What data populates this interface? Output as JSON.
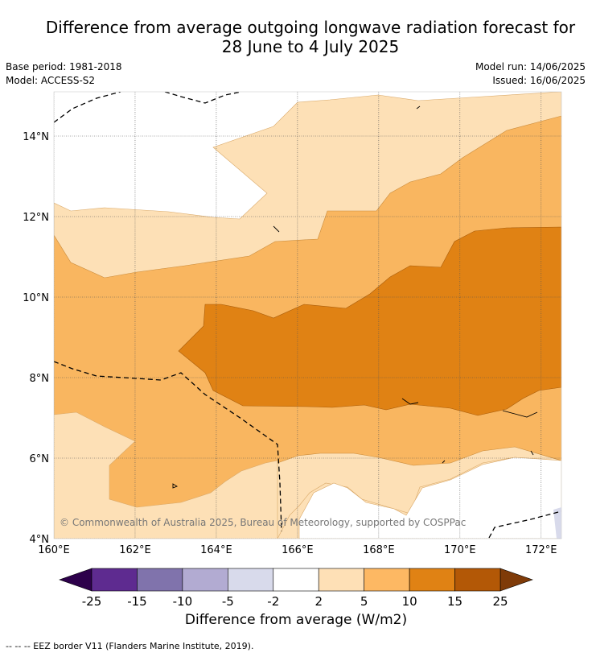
{
  "title_line1": "Difference from average outgoing longwave radiation forecast for",
  "title_line2": "28 June to 4 July 2025",
  "base_period": "Base period: 1981-2018",
  "model": "Model: ACCESS-S2",
  "model_run": "Model run: 14/06/2025",
  "issued": "Issued: 16/06/2025",
  "copyright": "© Commonwealth of Australia 2025, Bureau of Meteorology, supported by COSPPac",
  "map": {
    "lat_ticks": [
      {
        "value": 14,
        "label": "14°N"
      },
      {
        "value": 12,
        "label": "12°N"
      },
      {
        "value": 10,
        "label": "10°N"
      },
      {
        "value": 8,
        "label": "8°N"
      },
      {
        "value": 6,
        "label": "6°N"
      },
      {
        "value": 4,
        "label": "4°N"
      }
    ],
    "lon_ticks": [
      {
        "value": 160,
        "label": "160°E"
      },
      {
        "value": 162,
        "label": "162°E"
      },
      {
        "value": 164,
        "label": "164°E"
      },
      {
        "value": 166,
        "label": "166°E"
      },
      {
        "value": 168,
        "label": "168°E"
      },
      {
        "value": 170,
        "label": "170°E"
      },
      {
        "value": 172,
        "label": "172°E"
      }
    ],
    "lon_range": [
      160,
      172.5
    ],
    "lat_range": [
      4,
      15.1
    ],
    "colors": {
      "c2_5": "#fde0b6",
      "c5_10": "#f9b660",
      "c10_15": "#e08214",
      "cneg": "#d8daeb"
    }
  },
  "colorbar": {
    "labels": [
      "-25",
      "-15",
      "-10",
      "-5",
      "-2",
      "2",
      "5",
      "10",
      "15",
      "25"
    ],
    "colors": [
      "#5e2b90",
      "#8073ac",
      "#b2abd2",
      "#d8daeb",
      "#ffffff",
      "#fee0b6",
      "#fdb863",
      "#e08214",
      "#b35806"
    ],
    "under_color": "#2d004b",
    "over_color": "#7f3b08",
    "title": "Difference from average (W/m2)"
  },
  "footnote": "--  --  -- EEZ border V11 (Flanders Marine Institute, 2019)."
}
